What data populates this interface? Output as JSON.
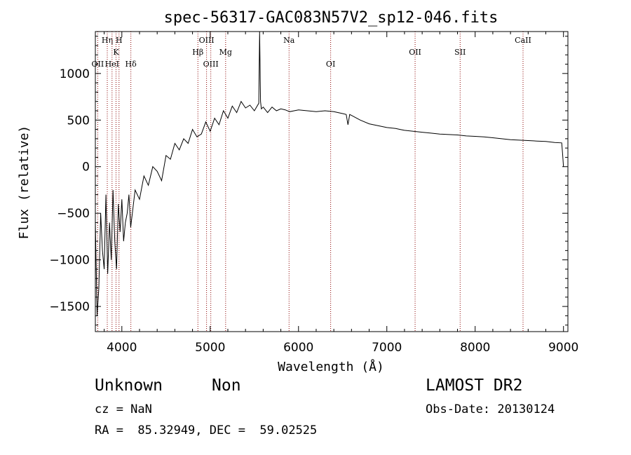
{
  "chart_data": {
    "type": "line",
    "title": "spec-56317-GAC083N57V2_sp12-046.fits",
    "xlabel": "Wavelength (Å)",
    "ylabel": "Flux (relative)",
    "xlim": [
      3700,
      9050
    ],
    "ylim": [
      -1770,
      1450
    ],
    "xticks": [
      4000,
      5000,
      6000,
      7000,
      8000,
      9000
    ],
    "xtick_labels": [
      "4000",
      "5000",
      "6000",
      "7000",
      "8000",
      "9000"
    ],
    "yticks": [
      -1500,
      -1000,
      -500,
      0,
      500,
      1000
    ],
    "ytick_labels": [
      "−1500",
      "−1000",
      "−500",
      "0",
      "500",
      "1000"
    ],
    "grid": false,
    "series": [
      {
        "x": [
          3700,
          3720,
          3740,
          3760,
          3780,
          3800,
          3820,
          3840,
          3860,
          3880,
          3900,
          3920,
          3940,
          3960,
          3980,
          4000,
          4020,
          4040,
          4060,
          4080,
          4100,
          4150,
          4200,
          4250,
          4300,
          4350,
          4400,
          4450,
          4500,
          4550,
          4600,
          4650,
          4700,
          4750,
          4800,
          4850,
          4900,
          4950,
          5000,
          5050,
          5100,
          5150,
          5200,
          5250,
          5300,
          5350,
          5400,
          5450,
          5500,
          5550,
          5560,
          5570,
          5580,
          5600,
          5650,
          5700,
          5750,
          5800,
          5850,
          5900,
          5950,
          6000,
          6100,
          6200,
          6300,
          6400,
          6500,
          6540,
          6560,
          6580,
          6600,
          6700,
          6800,
          6900,
          7000,
          7100,
          7150,
          7200,
          7300,
          7400,
          7500,
          7600,
          7700,
          7800,
          7900,
          8000,
          8100,
          8200,
          8300,
          8400,
          8500,
          8600,
          8700,
          8800,
          8900,
          8980,
          8990,
          9000
        ],
        "y": [
          -600,
          -1600,
          -1300,
          -500,
          -900,
          -1100,
          -300,
          -1150,
          -600,
          -1000,
          -250,
          -800,
          -1100,
          -400,
          -700,
          -350,
          -800,
          -600,
          -500,
          -300,
          -650,
          -250,
          -350,
          -100,
          -200,
          0,
          -50,
          -150,
          120,
          80,
          250,
          180,
          300,
          250,
          400,
          320,
          350,
          480,
          380,
          520,
          450,
          600,
          520,
          650,
          580,
          700,
          630,
          660,
          600,
          680,
          1450,
          700,
          620,
          640,
          580,
          640,
          600,
          620,
          610,
          590,
          600,
          610,
          600,
          590,
          600,
          590,
          570,
          560,
          450,
          560,
          550,
          500,
          460,
          440,
          420,
          410,
          400,
          390,
          380,
          370,
          360,
          350,
          345,
          340,
          330,
          325,
          320,
          310,
          300,
          290,
          285,
          280,
          275,
          270,
          260,
          255,
          140,
          0
        ]
      }
    ],
    "lines": [
      {
        "label": "OII",
        "x": 3727,
        "row": 2
      },
      {
        "label": "Hη",
        "x": 3835,
        "row": 0
      },
      {
        "label": "HeI",
        "x": 3889,
        "row": 2
      },
      {
        "label": "K",
        "x": 3934,
        "row": 1
      },
      {
        "label": "H",
        "x": 3968,
        "row": 0
      },
      {
        "label": "Hδ",
        "x": 4102,
        "row": 2
      },
      {
        "label": "Hβ",
        "x": 4861,
        "row": 1
      },
      {
        "label": "OIII",
        "x": 4959,
        "row": 0
      },
      {
        "label": "OIII",
        "x": 5007,
        "row": 2
      },
      {
        "label": "Mg",
        "x": 5175,
        "row": 1
      },
      {
        "label": "Na",
        "x": 5893,
        "row": 0
      },
      {
        "label": "OI",
        "x": 6364,
        "row": 2
      },
      {
        "label": "OII",
        "x": 7320,
        "row": 1
      },
      {
        "label": "SII",
        "x": 7830,
        "row": 1
      },
      {
        "label": "CaII",
        "x": 8542,
        "row": 0
      }
    ],
    "line_color": "#8b0000",
    "series_color": "#000000"
  },
  "footer": {
    "object_class": "Unknown",
    "subclass": "Non",
    "survey": "LAMOST DR2",
    "redshift": "cz = NaN",
    "obs_date": "Obs-Date: 20130124",
    "coords": "RA =  85.32949, DEC =  59.02525"
  }
}
